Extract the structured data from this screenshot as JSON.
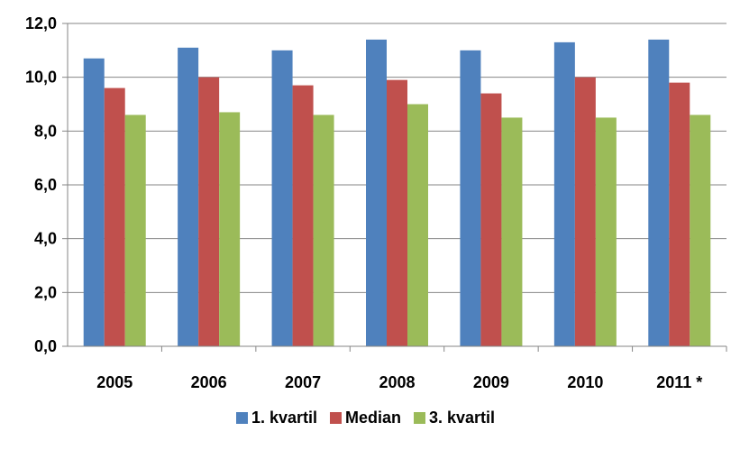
{
  "chart_data": {
    "type": "bar",
    "categories": [
      "2005",
      "2006",
      "2007",
      "2008",
      "2009",
      "2010",
      "2011 *"
    ],
    "series": [
      {
        "name": "1. kvartil",
        "color": "#4F81BD",
        "values": [
          10.7,
          11.1,
          11.0,
          11.4,
          11.0,
          11.3,
          11.4
        ]
      },
      {
        "name": "Median",
        "color": "#C0504D",
        "values": [
          9.6,
          10.0,
          9.7,
          9.9,
          9.4,
          10.0,
          9.8
        ]
      },
      {
        "name": "3. kvartil",
        "color": "#9BBB59",
        "values": [
          8.6,
          8.7,
          8.6,
          9.0,
          8.5,
          8.5,
          8.6
        ]
      }
    ],
    "yticks": [
      "0,0",
      "2,0",
      "4,0",
      "6,0",
      "8,0",
      "10,0",
      "12,0"
    ],
    "ylim": [
      0,
      12
    ],
    "ystep": 2,
    "grid": true,
    "legend_position": "bottom"
  }
}
